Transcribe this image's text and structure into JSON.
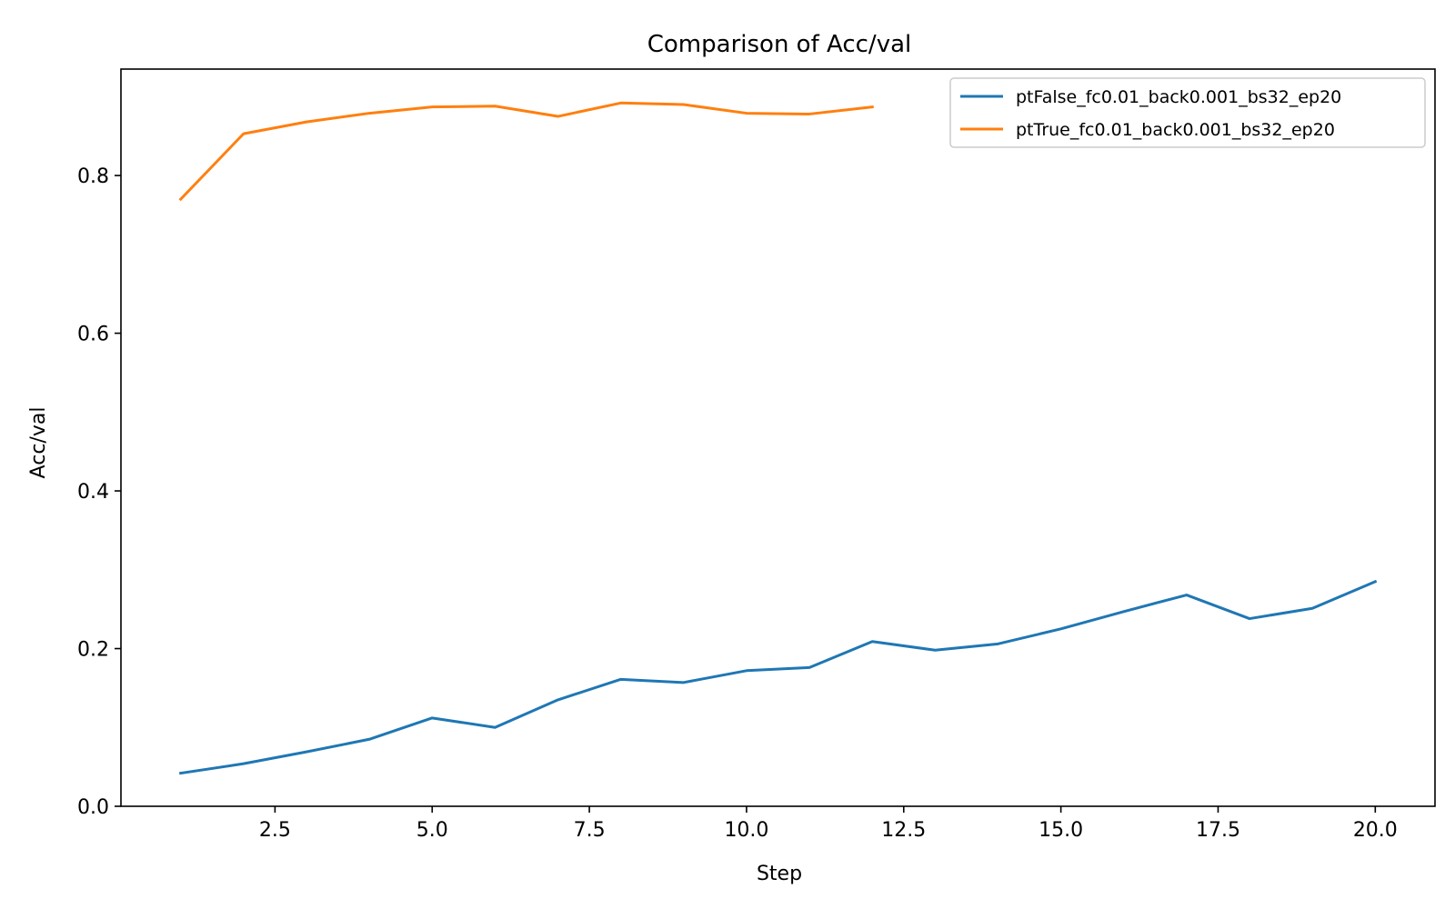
{
  "chart_data": {
    "type": "line",
    "title": "Comparison of Acc/val",
    "xlabel": "Step",
    "ylabel": "Acc/val",
    "xlim": [
      0.05,
      20.95
    ],
    "ylim": [
      0.0,
      0.935
    ],
    "x_ticks": [
      2.5,
      5.0,
      7.5,
      10.0,
      12.5,
      15.0,
      17.5,
      20.0
    ],
    "x_tick_labels": [
      "2.5",
      "5.0",
      "7.5",
      "10.0",
      "12.5",
      "15.0",
      "17.5",
      "20.0"
    ],
    "y_ticks": [
      0.0,
      0.2,
      0.4,
      0.6,
      0.8
    ],
    "y_tick_labels": [
      "0.0",
      "0.2",
      "0.4",
      "0.6",
      "0.8"
    ],
    "grid": false,
    "legend_position": "top-right",
    "series": [
      {
        "name": "ptFalse_fc0.01_back0.001_bs32_ep20",
        "color": "#1f77b4",
        "x": [
          1,
          2,
          3,
          4,
          5,
          6,
          7,
          8,
          9,
          10,
          11,
          12,
          13,
          14,
          15,
          16,
          17,
          18,
          19,
          20
        ],
        "values": [
          0.042,
          0.054,
          0.069,
          0.085,
          0.112,
          0.1,
          0.135,
          0.161,
          0.157,
          0.172,
          0.176,
          0.209,
          0.198,
          0.206,
          0.225,
          0.247,
          0.268,
          0.238,
          0.251,
          0.285
        ]
      },
      {
        "name": "ptTrue_fc0.01_back0.001_bs32_ep20",
        "color": "#ff7f0e",
        "x": [
          1,
          2,
          3,
          4,
          5,
          6,
          7,
          8,
          9,
          10,
          11,
          12
        ],
        "values": [
          0.77,
          0.853,
          0.868,
          0.879,
          0.887,
          0.888,
          0.875,
          0.892,
          0.89,
          0.879,
          0.878,
          0.887
        ]
      }
    ]
  }
}
